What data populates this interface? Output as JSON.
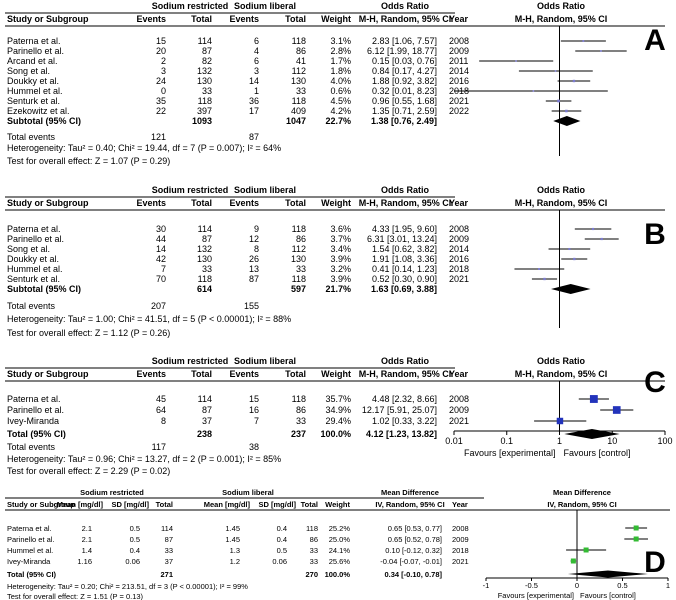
{
  "chart_data": [
    {
      "type": "forest",
      "panel": "A",
      "headers": {
        "group1": "Sodium restricted",
        "group2": "Sodium liberal",
        "effect": "Odds Ratio",
        "effect_plot": "Odds Ratio",
        "study": "Study or Subgroup",
        "events": "Events",
        "total": "Total",
        "weight": "Weight",
        "method": "M-H, Random, 95% CI",
        "year": "Year",
        "method_plot": "M-H, Random, 95% CI"
      },
      "rows": [
        {
          "study": "Paterna et al.",
          "e1": "15",
          "t1": "114",
          "e2": "6",
          "t2": "118",
          "weight": "3.1%",
          "ci": "2.83 [1.06, 7.57]",
          "year": "2008",
          "est": 2.83,
          "lo": 1.06,
          "hi": 7.57
        },
        {
          "study": "Parinello et al.",
          "e1": "20",
          "t1": "87",
          "e2": "4",
          "t2": "86",
          "weight": "2.8%",
          "ci": "6.12 [1.99, 18.77]",
          "year": "2009",
          "est": 6.12,
          "lo": 1.99,
          "hi": 18.77
        },
        {
          "study": "Arcand et al.",
          "e1": "2",
          "t1": "82",
          "e2": "6",
          "t2": "41",
          "weight": "1.7%",
          "ci": "0.15 [0.03, 0.76]",
          "year": "2011",
          "est": 0.15,
          "lo": 0.03,
          "hi": 0.76
        },
        {
          "study": "Song et al.",
          "e1": "3",
          "t1": "132",
          "e2": "3",
          "t2": "112",
          "weight": "1.8%",
          "ci": "0.84 [0.17, 4.27]",
          "year": "2014",
          "est": 0.84,
          "lo": 0.17,
          "hi": 4.27
        },
        {
          "study": "Doukky et al.",
          "e1": "24",
          "t1": "130",
          "e2": "14",
          "t2": "130",
          "weight": "4.0%",
          "ci": "1.88 [0.92, 3.82]",
          "year": "2016",
          "est": 1.88,
          "lo": 0.92,
          "hi": 3.82
        },
        {
          "study": "Hummel et al.",
          "e1": "0",
          "t1": "33",
          "e2": "1",
          "t2": "33",
          "weight": "0.6%",
          "ci": "0.32 [0.01, 8.23]",
          "year": "2018",
          "est": 0.32,
          "lo": 0.01,
          "hi": 8.23
        },
        {
          "study": "Senturk et al.",
          "e1": "35",
          "t1": "118",
          "e2": "36",
          "t2": "118",
          "weight": "4.5%",
          "ci": "0.96 [0.55, 1.68]",
          "year": "2021",
          "est": 0.96,
          "lo": 0.55,
          "hi": 1.68
        },
        {
          "study": "Ezekowitz et al.",
          "e1": "22",
          "t1": "397",
          "e2": "17",
          "t2": "409",
          "weight": "4.2%",
          "ci": "1.35 [0.71, 2.59]",
          "year": "2022",
          "est": 1.35,
          "lo": 0.71,
          "hi": 2.59
        }
      ],
      "subtotal": {
        "label": "Subtotal (95% CI)",
        "t1": "1093",
        "t2": "1047",
        "weight": "22.7%",
        "ci": "1.38 [0.76, 2.49]",
        "est": 1.38,
        "lo": 0.76,
        "hi": 2.49
      },
      "total_events": {
        "label": "Total events",
        "e1": "121",
        "e2": "87"
      },
      "heterogeneity": "Heterogeneity: Tau² = 0.40; Chi² = 19.44, df = 7 (P = 0.007); I² = 64%",
      "overall_effect": "Test for overall effect: Z = 1.07 (P = 0.29)",
      "x_scale": "log",
      "xlim": [
        0.01,
        100
      ],
      "reference_line": 1,
      "marker_color": "#7b7bd0"
    },
    {
      "type": "forest",
      "panel": "B",
      "headers": {
        "group1": "Sodium restricted",
        "group2": "Sodium liberal",
        "effect": "Odds Ratio",
        "effect_plot": "Odds Ratio",
        "study": "Study or Subgroup",
        "events": "Events",
        "total": "Total",
        "weight": "Weight",
        "method": "M-H, Random, 95% CI",
        "year": "Year",
        "method_plot": "M-H, Random, 95% CI"
      },
      "rows": [
        {
          "study": "Paterna et al.",
          "e1": "30",
          "t1": "114",
          "e2": "9",
          "t2": "118",
          "weight": "3.6%",
          "ci": "4.33 [1.95, 9.60]",
          "year": "2008",
          "est": 4.33,
          "lo": 1.95,
          "hi": 9.6
        },
        {
          "study": "Parinello et al.",
          "e1": "44",
          "t1": "87",
          "e2": "12",
          "t2": "86",
          "weight": "3.7%",
          "ci": "6.31 [3.01, 13.24]",
          "year": "2009",
          "est": 6.31,
          "lo": 3.01,
          "hi": 13.24
        },
        {
          "study": "Song et al.",
          "e1": "14",
          "t1": "132",
          "e2": "8",
          "t2": "112",
          "weight": "3.4%",
          "ci": "1.54 [0.62, 3.82]",
          "year": "2014",
          "est": 1.54,
          "lo": 0.62,
          "hi": 3.82
        },
        {
          "study": "Doukky et al.",
          "e1": "42",
          "t1": "130",
          "e2": "26",
          "t2": "130",
          "weight": "3.9%",
          "ci": "1.91 [1.08, 3.36]",
          "year": "2016",
          "est": 1.91,
          "lo": 1.08,
          "hi": 3.36
        },
        {
          "study": "Hummel et al.",
          "e1": "7",
          "t1": "33",
          "e2": "13",
          "t2": "33",
          "weight": "3.2%",
          "ci": "0.41 [0.14, 1.23]",
          "year": "2018",
          "est": 0.41,
          "lo": 0.14,
          "hi": 1.23
        },
        {
          "study": "Senturk et al.",
          "e1": "70",
          "t1": "118",
          "e2": "87",
          "t2": "118",
          "weight": "3.9%",
          "ci": "0.52 [0.30, 0.90]",
          "year": "2021",
          "est": 0.52,
          "lo": 0.3,
          "hi": 0.9
        }
      ],
      "subtotal": {
        "label": "Subtotal (95% CI)",
        "t1": "614",
        "t2": "597",
        "weight": "21.7%",
        "ci": "1.63 [0.69, 3.88]",
        "est": 1.63,
        "lo": 0.69,
        "hi": 3.88
      },
      "total_events": {
        "label": "Total events",
        "e1": "207",
        "e2": "155"
      },
      "heterogeneity": "Heterogeneity: Tau² = 1.00; Chi² = 41.51, df = 5 (P < 0.00001); I² = 88%",
      "overall_effect": "Test for overall effect: Z = 1.12 (P = 0.26)",
      "x_scale": "log",
      "xlim": [
        0.01,
        100
      ],
      "reference_line": 1,
      "marker_color": "#7b7bd0"
    },
    {
      "type": "forest",
      "panel": "C",
      "headers": {
        "group1": "Sodium restricted",
        "group2": "Sodium liberal",
        "effect": "Odds Ratio",
        "effect_plot": "Odds Ratio",
        "study": "Study or Subgroup",
        "events": "Events",
        "total": "Total",
        "weight": "Weight",
        "method": "M-H, Random, 95% CI",
        "year": "Year",
        "method_plot": "M-H, Random, 95% CI"
      },
      "rows": [
        {
          "study": "Paterna et al.",
          "e1": "45",
          "t1": "114",
          "e2": "15",
          "t2": "118",
          "weight": "35.7%",
          "ci": "4.48 [2.32, 8.66]",
          "year": "2008",
          "est": 4.48,
          "lo": 2.32,
          "hi": 8.66
        },
        {
          "study": "Parinello et al.",
          "e1": "64",
          "t1": "87",
          "e2": "16",
          "t2": "86",
          "weight": "34.9%",
          "ci": "12.17 [5.91, 25.07]",
          "year": "2009",
          "est": 12.17,
          "lo": 5.91,
          "hi": 25.07
        },
        {
          "study": "Ivey-Miranda",
          "e1": "8",
          "t1": "37",
          "e2": "7",
          "t2": "33",
          "weight": "29.4%",
          "ci": "1.02 [0.33, 3.22]",
          "year": "2021",
          "est": 1.02,
          "lo": 0.33,
          "hi": 3.22
        }
      ],
      "subtotal": {
        "label": "Total (95% CI)",
        "t1": "238",
        "t2": "237",
        "weight": "100.0%",
        "ci": "4.12 [1.23, 13.82]",
        "est": 4.12,
        "lo": 1.23,
        "hi": 13.82
      },
      "total_events": {
        "label": "Total events",
        "e1": "117",
        "e2": "38"
      },
      "heterogeneity": "Heterogeneity: Tau² = 0.96; Chi² = 13.27, df = 2 (P = 0.001); I² = 85%",
      "overall_effect": "Test for overall effect: Z = 2.29 (P = 0.02)",
      "x_scale": "log",
      "xlim": [
        0.01,
        100
      ],
      "reference_line": 1,
      "x_ticks": [
        "0.01",
        "0.1",
        "1",
        "10",
        "100"
      ],
      "favours_left": "Favours [experimental]",
      "favours_right": "Favours [control]",
      "marker_color": "#2233bb"
    },
    {
      "type": "forest",
      "panel": "D",
      "headers": {
        "group1": "Sodium restricted",
        "group2": "Sodium liberal",
        "effect": "Mean Difference",
        "effect_plot": "Mean Difference",
        "study": "Study or Subgroup",
        "mean1": "Mean [mg/dl]",
        "sd1": "SD [mg/dl]",
        "total1": "Total",
        "mean2": "Mean [mg/dl]",
        "sd2": "SD [mg/dl]",
        "total2": "Total",
        "weight": "Weight",
        "method": "IV, Random, 95% CI",
        "year": "Year",
        "method_plot": "IV, Random, 95% CI"
      },
      "rows": [
        {
          "study": "Paterna et al.",
          "m1": "2.1",
          "sd1": "0.5",
          "t1": "114",
          "m2": "1.45",
          "sd2": "0.4",
          "t2": "118",
          "weight": "25.2%",
          "ci": "0.65 [0.53, 0.77]",
          "year": "2008",
          "est": 0.65,
          "lo": 0.53,
          "hi": 0.77
        },
        {
          "study": "Parinello et al.",
          "m1": "2.1",
          "sd1": "0.5",
          "t1": "87",
          "m2": "1.45",
          "sd2": "0.4",
          "t2": "86",
          "weight": "25.0%",
          "ci": "0.65 [0.52, 0.78]",
          "year": "2009",
          "est": 0.65,
          "lo": 0.52,
          "hi": 0.78
        },
        {
          "study": "Hummel et al.",
          "m1": "1.4",
          "sd1": "0.4",
          "t1": "33",
          "m2": "1.3",
          "sd2": "0.5",
          "t2": "33",
          "weight": "24.1%",
          "ci": "0.10 [-0.12, 0.32]",
          "year": "2018",
          "est": 0.1,
          "lo": -0.12,
          "hi": 0.32
        },
        {
          "study": "Ivey-Miranda",
          "m1": "1.16",
          "sd1": "0.06",
          "t1": "37",
          "m2": "1.2",
          "sd2": "0.06",
          "t2": "33",
          "weight": "25.6%",
          "ci": "-0.04 [-0.07, -0.01]",
          "year": "2021",
          "est": -0.04,
          "lo": -0.07,
          "hi": -0.01
        }
      ],
      "subtotal": {
        "label": "Total (95% CI)",
        "t1": "271",
        "t2": "270",
        "weight": "100.0%",
        "ci": "0.34 [-0.10, 0.78]",
        "est": 0.34,
        "lo": -0.1,
        "hi": 0.78
      },
      "heterogeneity": "Heterogeneity: Tau² = 0.20; Chi² = 213.51, df = 3 (P < 0.00001); I² = 99%",
      "overall_effect": "Test for overall effect: Z = 1.51 (P = 0.13)",
      "x_scale": "linear",
      "xlim": [
        -1,
        1
      ],
      "reference_line": 0,
      "x_ticks": [
        "-1",
        "-0.5",
        "0",
        "0.5",
        "1"
      ],
      "favours_left": "Favours [experimental]",
      "favours_right": "Favours [control]",
      "marker_color": "#33bb33"
    }
  ]
}
